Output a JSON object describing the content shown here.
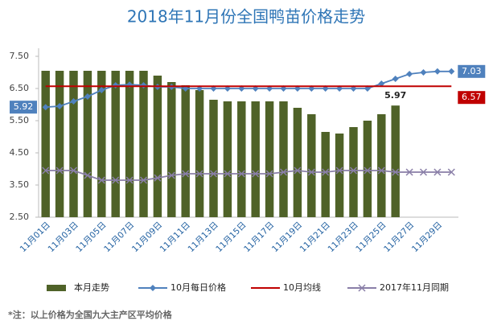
{
  "chart_data": {
    "type": "combo",
    "title": "2018年11月份全国鸭苗价格走势",
    "footnote": "*注：以上价格为全国九大主产区平均价格",
    "categories": [
      "11月01日",
      null,
      "11月03日",
      null,
      "11月05日",
      null,
      "11月07日",
      null,
      "11月09日",
      null,
      "11月11日",
      null,
      "11月13日",
      null,
      "11月15日",
      null,
      "11月17日",
      null,
      "11月19日",
      null,
      "11月21日",
      null,
      "11月23日",
      null,
      "11月25日",
      null,
      "11月27日",
      null,
      "11月29日",
      null
    ],
    "ylim": [
      2.5,
      7.75
    ],
    "yticks": [
      {
        "value": 2.5,
        "label": "2.50"
      },
      {
        "value": 3.5,
        "label": "3.50"
      },
      {
        "value": 4.5,
        "label": "4.50"
      },
      {
        "value": 5.5,
        "label": "5.50"
      },
      {
        "value": 6.5,
        "label": "6.50"
      },
      {
        "value": 7.5,
        "label": "7.50"
      }
    ],
    "grid": false,
    "legend": "bottom",
    "series": [
      {
        "name": "本月走势",
        "type": "bar",
        "color": "#4f6228",
        "data_labels": "end",
        "values": [
          7.05,
          7.05,
          7.05,
          7.05,
          7.05,
          7.05,
          7.05,
          7.05,
          6.9,
          6.7,
          6.6,
          6.45,
          6.15,
          6.1,
          6.1,
          6.1,
          6.1,
          6.1,
          5.9,
          5.7,
          5.15,
          5.1,
          5.3,
          5.5,
          5.7,
          5.97,
          null,
          null,
          null,
          null
        ]
      },
      {
        "name": "10月每日价格",
        "type": "line",
        "marker": "diamond",
        "color": "#4f81bd",
        "data_labels": "ends-boxed",
        "values": [
          5.92,
          5.95,
          6.1,
          6.25,
          6.45,
          6.6,
          6.62,
          6.6,
          6.55,
          6.55,
          6.5,
          6.5,
          6.5,
          6.5,
          6.5,
          6.5,
          6.5,
          6.5,
          6.5,
          6.5,
          6.5,
          6.5,
          6.5,
          6.5,
          6.65,
          6.8,
          6.95,
          7.0,
          7.03,
          7.03
        ]
      },
      {
        "name": "10月均线",
        "type": "line",
        "marker": "none",
        "color": "#c00000",
        "data_labels": "end-boxed",
        "values": [
          6.57,
          6.57,
          6.57,
          6.57,
          6.57,
          6.57,
          6.57,
          6.57,
          6.57,
          6.57,
          6.57,
          6.57,
          6.57,
          6.57,
          6.57,
          6.57,
          6.57,
          6.57,
          6.57,
          6.57,
          6.57,
          6.57,
          6.57,
          6.57,
          6.57,
          6.57,
          6.57,
          6.57,
          6.57,
          6.57
        ]
      },
      {
        "name": "2017年11月同期",
        "type": "line",
        "marker": "x",
        "color": "#8a7fa8",
        "data_labels": "none",
        "values": [
          3.95,
          3.95,
          3.95,
          3.8,
          3.65,
          3.65,
          3.65,
          3.65,
          3.72,
          3.8,
          3.85,
          3.85,
          3.85,
          3.85,
          3.85,
          3.85,
          3.85,
          3.9,
          3.95,
          3.9,
          3.9,
          3.95,
          3.95,
          3.95,
          3.95,
          3.9,
          3.9,
          3.9,
          3.9,
          3.9
        ]
      }
    ]
  }
}
